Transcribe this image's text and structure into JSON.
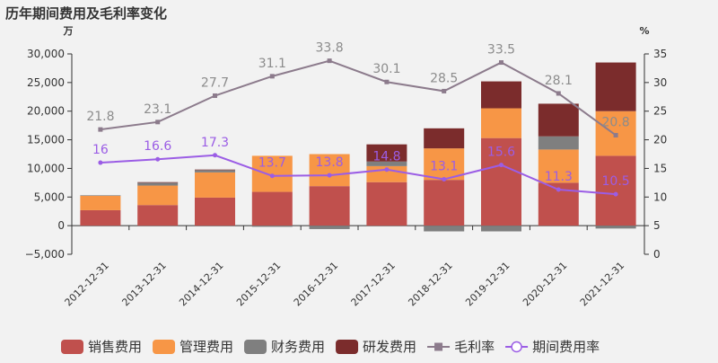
{
  "chart_data": {
    "type": "bar",
    "title": "历年期间费用及毛利率变化",
    "left_unit": "万",
    "right_unit": "%",
    "categories": [
      "2012-12-31",
      "2013-12-31",
      "2014-12-31",
      "2015-12-31",
      "2016-12-31",
      "2017-12-31",
      "2018-12-31",
      "2019-12-31",
      "2020-12-31",
      "2021-12-31"
    ],
    "left_axis": {
      "min": -5000,
      "max": 30000,
      "step": 5000,
      "tick_labels": [
        "−5,000",
        "0",
        "5,000",
        "10,000",
        "15,000",
        "20,000",
        "25,000",
        "30,000"
      ]
    },
    "right_axis": {
      "min": 0,
      "max": 35,
      "step": 5,
      "tick_labels": [
        "0",
        "5",
        "10",
        "15",
        "20",
        "25",
        "30",
        "35"
      ]
    },
    "bar_series": [
      {
        "name": "销售费用",
        "color": "#c0504d",
        "values": [
          2700,
          3600,
          4900,
          5900,
          6900,
          7600,
          8000,
          15300,
          7500,
          12200
        ]
      },
      {
        "name": "管理费用",
        "color": "#f79646",
        "values": [
          2500,
          3400,
          4400,
          6300,
          5600,
          2800,
          5500,
          5200,
          5800,
          7800
        ]
      },
      {
        "name": "财务费用",
        "color": "#7f7f7f",
        "values": [
          100,
          500,
          400,
          -200,
          -600,
          800,
          -1000,
          -1000,
          2300,
          -500
        ]
      },
      {
        "name": "研发费用",
        "color": "#7b2c2c",
        "values": [
          0,
          100,
          100,
          0,
          0,
          3000,
          3500,
          4700,
          5700,
          8500
        ]
      }
    ],
    "line_series": [
      {
        "name": "毛利率",
        "color": "#8c7b8c",
        "marker": "square",
        "values": [
          21.8,
          23.1,
          27.7,
          31.1,
          33.8,
          30.1,
          28.5,
          33.5,
          28.1,
          20.8
        ],
        "labels": [
          "21.8",
          "23.1",
          "27.7",
          "31.1",
          "33.8",
          "30.1",
          "28.5",
          "33.5",
          "28.1",
          "20.8"
        ]
      },
      {
        "name": "期间费用率",
        "color": "#9b5de5",
        "marker": "circle",
        "values": [
          16,
          16.6,
          17.3,
          13.7,
          13.8,
          14.8,
          13.1,
          15.6,
          11.3,
          10.5
        ],
        "labels": [
          "16",
          "16.6",
          "17.3",
          "13.7",
          "13.8",
          "14.8",
          "13.1",
          "15.6",
          "11.3",
          "10.5"
        ]
      }
    ]
  }
}
